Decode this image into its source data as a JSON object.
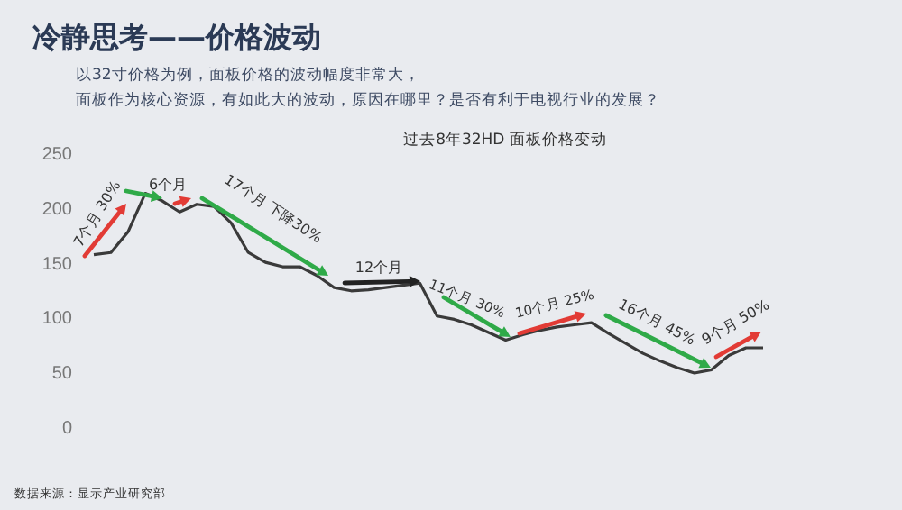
{
  "chart_data": {
    "type": "line",
    "title": "冷静思考——价格波动",
    "subtitle": "以32寸价格为例，面板价格的波动幅度非常大，",
    "annotations": [
      "面板作为核心资源，有如此大的波动，原因在哪里？是否有利于电视行业的发展？",
      "过去8年32HD 面板价格变动",
      "7个月 30%",
      "6个月",
      "17个月 下降30%",
      "12个月",
      "11个月 30%",
      "10个月 25%",
      "16个月 45%",
      "9个月 50%",
      "数据来源：显示产业研究部"
    ],
    "categories": [
      null,
      null,
      null,
      null,
      null,
      null,
      null,
      null,
      null,
      null,
      null,
      null,
      null,
      null,
      null,
      null,
      null,
      null,
      null,
      null,
      null,
      null,
      null,
      null,
      null,
      null,
      null,
      null,
      null,
      null,
      null,
      null,
      null,
      null,
      null,
      null,
      null,
      null,
      null,
      null
    ],
    "series": [
      {
        "color": "#3a3a3a",
        "values": [
          159,
          161,
          180,
          215,
          208,
          198,
          205,
          203,
          188,
          161,
          152,
          148,
          148,
          140,
          129,
          126,
          127,
          129,
          131,
          133,
          103,
          100,
          95,
          88,
          81,
          86,
          90,
          93,
          95,
          97,
          87,
          78,
          69,
          62,
          56,
          51,
          54,
          67,
          74,
          74
        ]
      }
    ],
    "ylim": [
      0,
      250
    ],
    "yticks": [
      0,
      50,
      100,
      150,
      200,
      250
    ],
    "grid": false,
    "marker": "none",
    "line_style": "solid",
    "tick_labels": "y"
  }
}
